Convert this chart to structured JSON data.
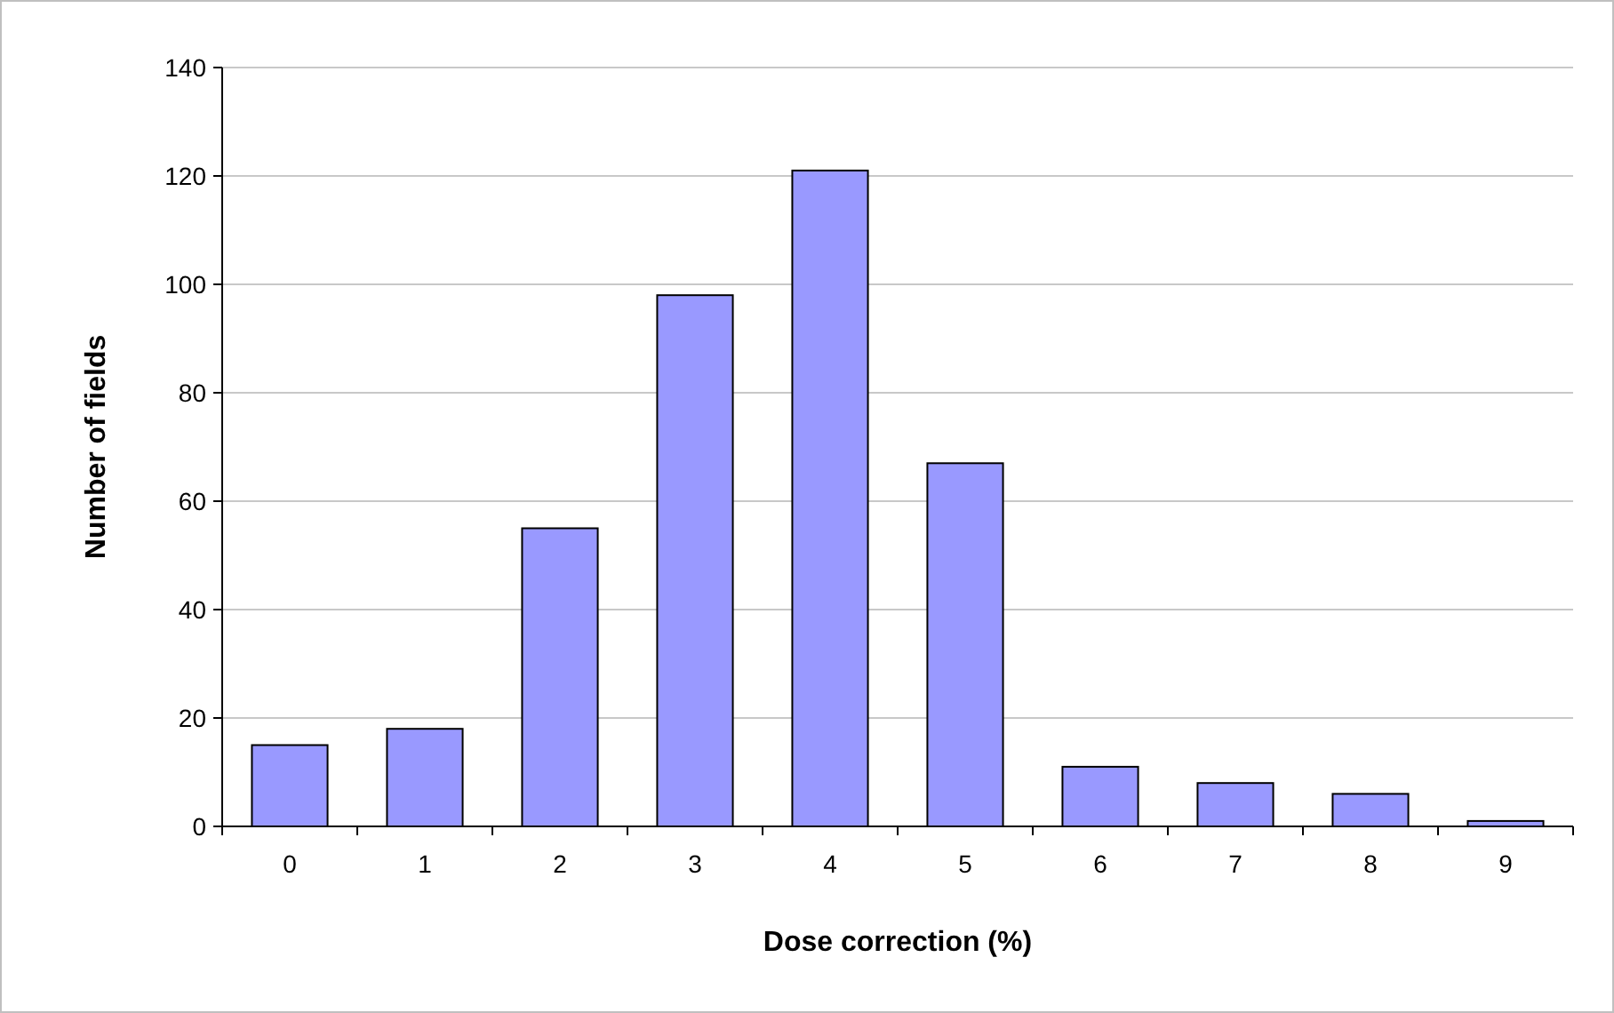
{
  "chart_data": {
    "type": "bar",
    "xlabel": "Dose correction (%)",
    "ylabel": "Number of fields",
    "categories": [
      "0",
      "1",
      "2",
      "3",
      "4",
      "5",
      "6",
      "7",
      "8",
      "9"
    ],
    "values": [
      15,
      18,
      55,
      98,
      121,
      67,
      11,
      8,
      6,
      1
    ],
    "color": "#9999ff",
    "ylim": [
      0,
      140
    ],
    "yticks": [
      0,
      20,
      40,
      60,
      80,
      100,
      120,
      140
    ],
    "grid": "y"
  }
}
